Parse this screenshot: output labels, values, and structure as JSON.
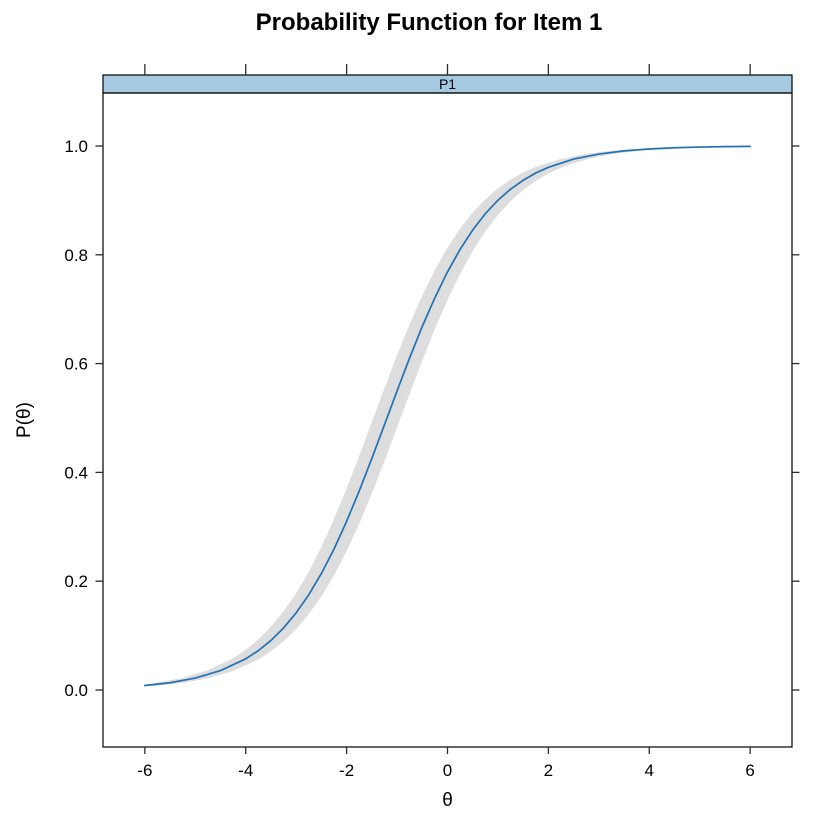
{
  "chart_data": {
    "type": "line",
    "title": "Probability Function for Item 1",
    "panel_label": "P1",
    "xlabel": "θ",
    "ylabel": "P(θ)",
    "xlim": [
      -6.83,
      6.83
    ],
    "ylim": [
      -0.1048,
      1.0974
    ],
    "x_ticks": [
      -6,
      -4,
      -2,
      0,
      2,
      4,
      6
    ],
    "x_tick_labels": [
      "-6",
      "-4",
      "-2",
      "0",
      "2",
      "4",
      "6"
    ],
    "y_ticks": [
      0.0,
      0.2,
      0.4,
      0.6,
      0.8,
      1.0
    ],
    "y_tick_labels": [
      "0.0",
      "0.2",
      "0.4",
      "0.6",
      "0.8",
      "1.0"
    ],
    "grid": false,
    "legend": "none",
    "series": [
      {
        "name": "P1",
        "x": [
          -6,
          -5.5,
          -5,
          -4.5,
          -4,
          -3.75,
          -3.5,
          -3.25,
          -3,
          -2.75,
          -2.5,
          -2.25,
          -2,
          -1.75,
          -1.5,
          -1.25,
          -1,
          -0.75,
          -0.5,
          -0.25,
          0,
          0.25,
          0.5,
          0.75,
          1,
          1.25,
          1.5,
          1.75,
          2,
          2.5,
          3,
          3.5,
          4,
          4.5,
          5,
          5.5,
          6
        ],
        "y": [
          0.0082,
          0.0133,
          0.0219,
          0.0356,
          0.0573,
          0.0724,
          0.0911,
          0.1141,
          0.1419,
          0.1751,
          0.2142,
          0.2592,
          0.31,
          0.3659,
          0.4256,
          0.4875,
          0.5498,
          0.6106,
          0.6682,
          0.7211,
          0.7685,
          0.81,
          0.8455,
          0.8755,
          0.9003,
          0.9206,
          0.937,
          0.9503,
          0.9608,
          0.9759,
          0.9852,
          0.991,
          0.9945,
          0.9967,
          0.998,
          0.9988,
          0.9993
        ]
      }
    ],
    "band": {
      "description": "confidence band around item characteristic curve",
      "theta_shift": 0.27,
      "color": "#DDDDDD"
    },
    "colors": {
      "line": "#2171B4",
      "strip_fill": "#A6C9E2",
      "border": "#000000",
      "tick": "#2b2b2b",
      "background": "#ffffff"
    }
  }
}
